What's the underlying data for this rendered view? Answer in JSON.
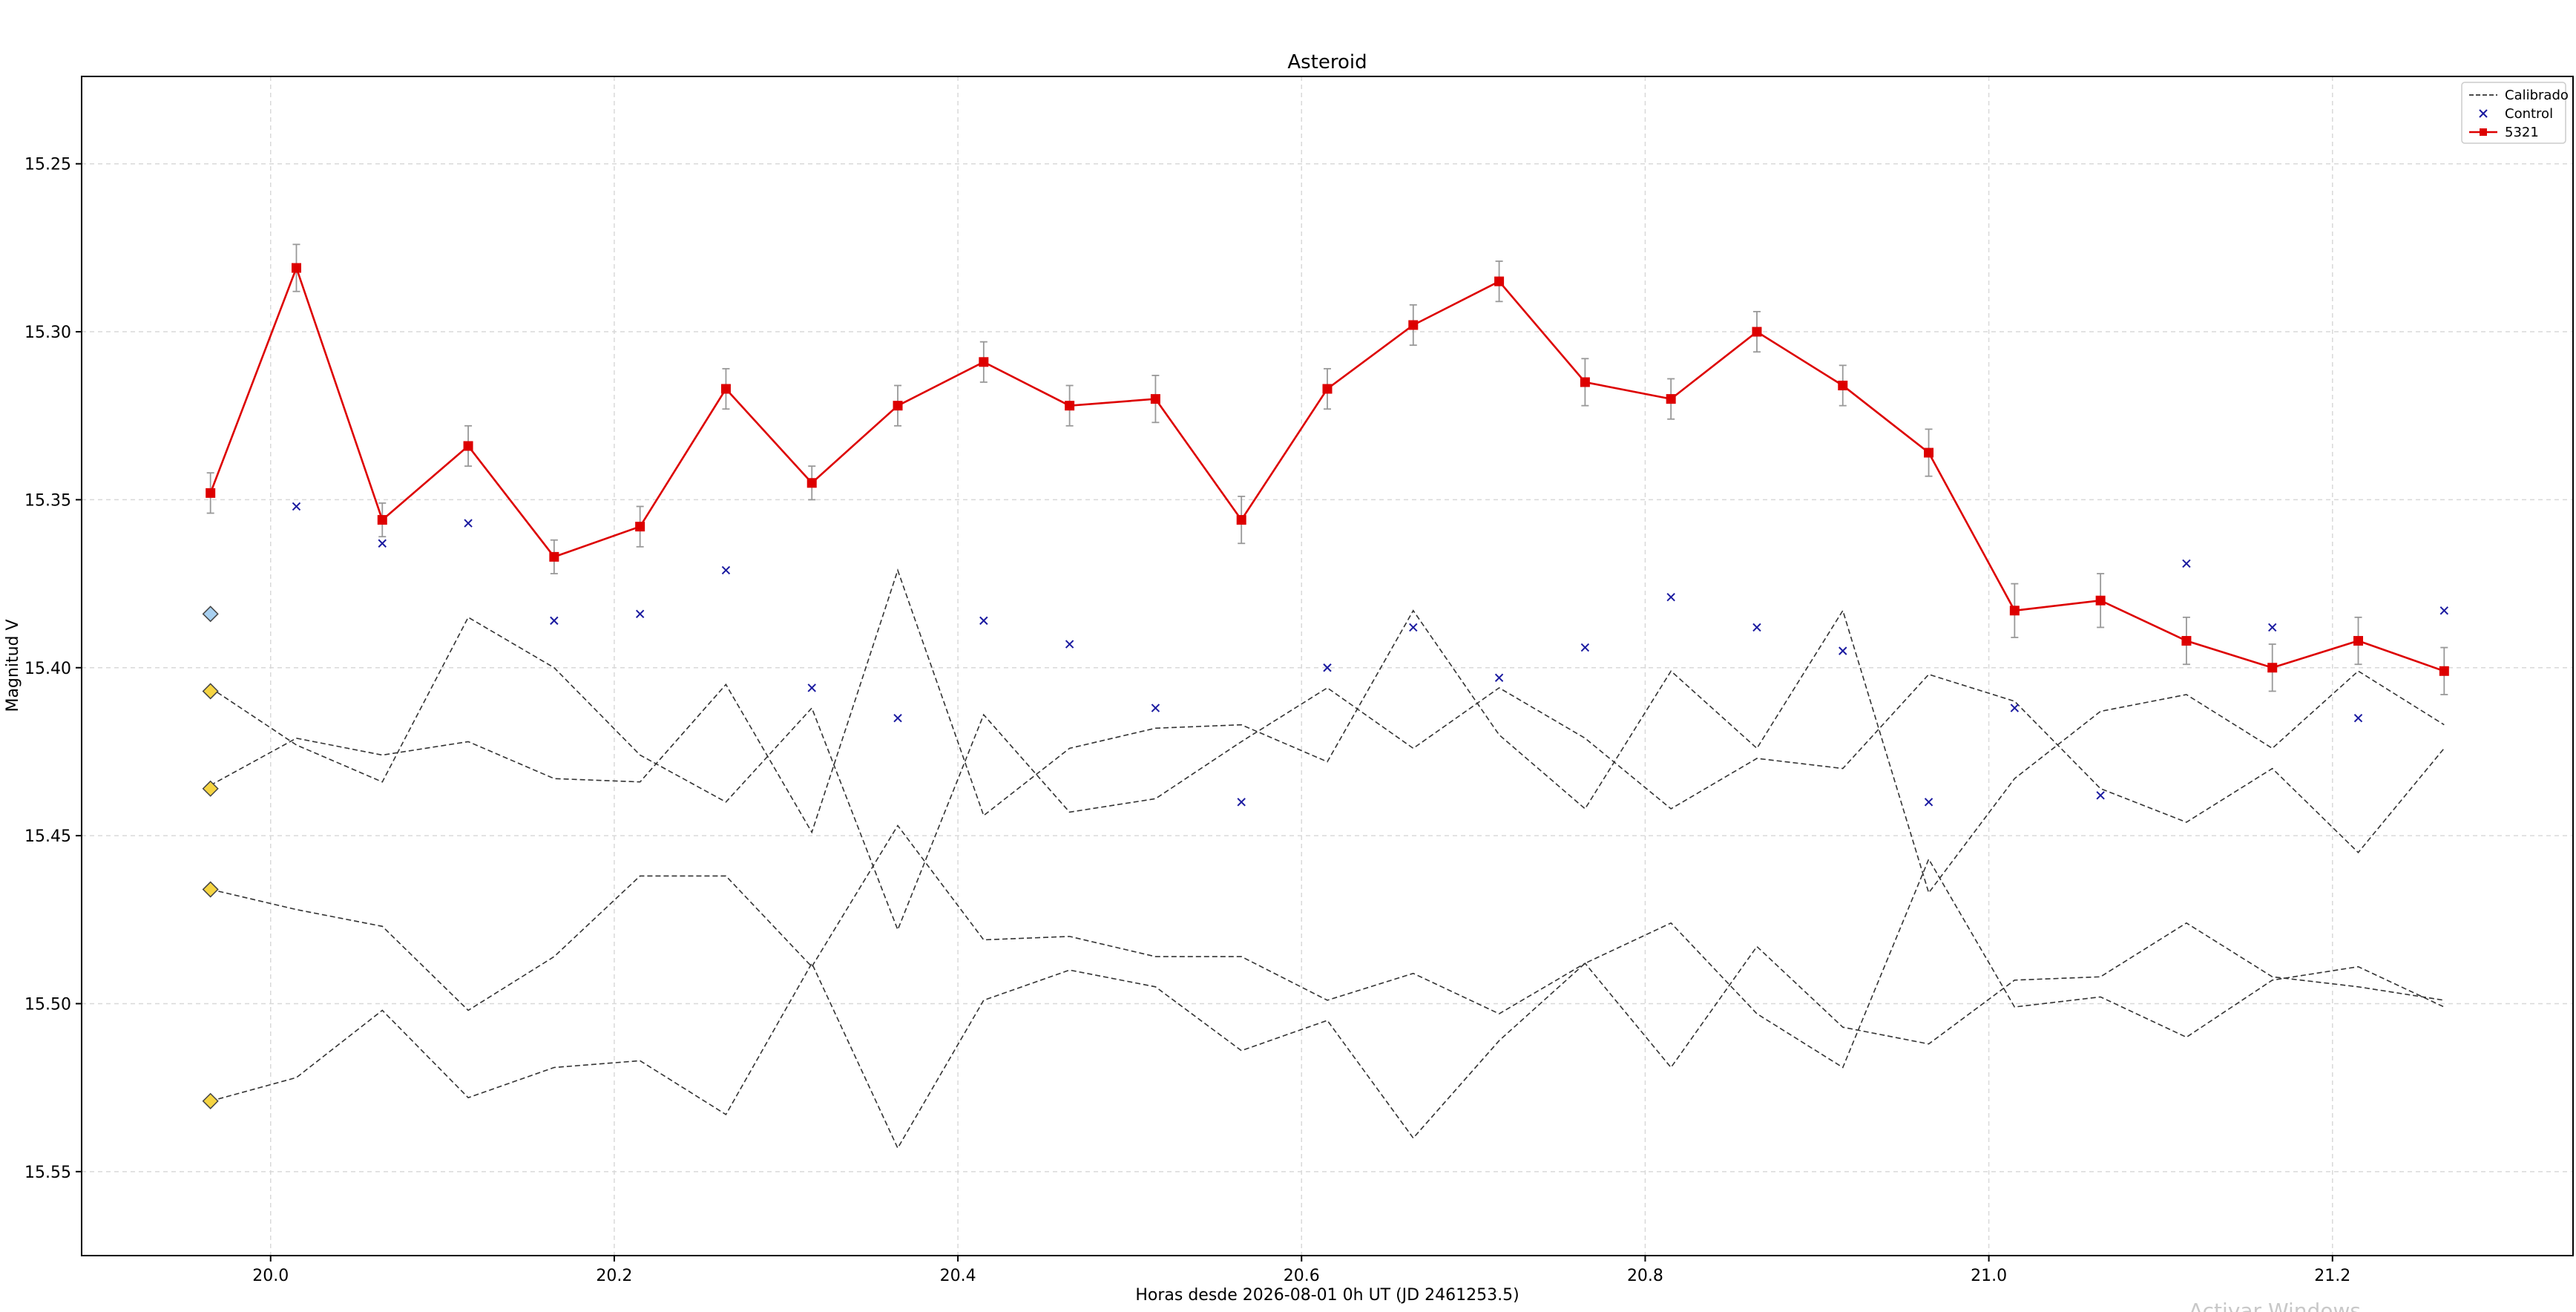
{
  "watermark": "Activar Windows",
  "chart_data": {
    "type": "line",
    "title": "Asteroid",
    "xlabel": "Horas desde 2026-08-01 0h UT (JD 2461253.5)",
    "ylabel": "Magnitud V",
    "xlim": [
      19.89,
      21.34
    ],
    "ylim": [
      15.575,
      15.224
    ],
    "y_inverted": true,
    "grid": true,
    "legend_position": "top-right",
    "x_ticks": [
      "20.0",
      "20.2",
      "20.4",
      "20.6",
      "20.8",
      "21.0",
      "21.2"
    ],
    "y_ticks": [
      "15.25",
      "15.30",
      "15.35",
      "15.40",
      "15.45",
      "15.50",
      "15.55"
    ],
    "x": [
      19.965,
      20.015,
      20.065,
      20.115,
      20.165,
      20.215,
      20.265,
      20.315,
      20.365,
      20.415,
      20.465,
      20.515,
      20.565,
      20.615,
      20.665,
      20.715,
      20.765,
      20.815,
      20.865,
      20.915,
      20.965,
      21.015,
      21.065,
      21.115,
      21.165,
      21.215,
      21.265
    ],
    "series": [
      {
        "name": "5321",
        "kind": "line-marker",
        "color": "#dd0000",
        "values": [
          15.348,
          15.281,
          15.356,
          15.334,
          15.367,
          15.358,
          15.317,
          15.345,
          15.322,
          15.309,
          15.322,
          15.32,
          15.356,
          15.317,
          15.298,
          15.285,
          15.315,
          15.32,
          15.3,
          15.316,
          15.336,
          15.383,
          15.38,
          15.392,
          15.4,
          15.392,
          15.401
        ],
        "errors": [
          0.006,
          0.007,
          0.005,
          0.006,
          0.005,
          0.006,
          0.006,
          0.005,
          0.006,
          0.006,
          0.006,
          0.007,
          0.007,
          0.006,
          0.006,
          0.006,
          0.007,
          0.006,
          0.006,
          0.006,
          0.007,
          0.008,
          0.008,
          0.007,
          0.007,
          0.007,
          0.007
        ]
      },
      {
        "name": "Control",
        "kind": "scatter-x",
        "color": "#1a1aa0",
        "values": [
          null,
          15.352,
          15.363,
          15.357,
          15.386,
          15.384,
          15.371,
          15.406,
          15.415,
          15.386,
          15.393,
          15.412,
          15.44,
          15.4,
          15.388,
          15.403,
          15.394,
          15.379,
          15.388,
          15.395,
          15.44,
          15.412,
          15.438,
          15.369,
          15.388,
          15.415,
          15.383
        ]
      },
      {
        "name": "Calibrado",
        "kind": "dashed",
        "color": "#333333",
        "values": [
          15.406,
          15.423,
          15.434,
          15.385,
          15.4,
          15.426,
          15.44,
          15.412,
          15.478,
          15.414,
          15.443,
          15.439,
          15.422,
          15.406,
          15.424,
          15.406,
          15.421,
          15.442,
          15.427,
          15.43,
          15.402,
          15.41,
          15.436,
          15.446,
          15.43,
          15.455,
          15.424
        ]
      },
      {
        "name": "",
        "kind": "dashed",
        "color": "#333333",
        "values": [
          15.435,
          15.421,
          15.426,
          15.422,
          15.433,
          15.434,
          15.405,
          15.449,
          15.371,
          15.444,
          15.424,
          15.418,
          15.417,
          15.428,
          15.383,
          15.42,
          15.442,
          15.401,
          15.424,
          15.383,
          15.467,
          15.433,
          15.413,
          15.408,
          15.424,
          15.401,
          15.417
        ]
      },
      {
        "name": "",
        "kind": "dashed",
        "color": "#333333",
        "values": [
          15.466,
          15.472,
          15.477,
          15.502,
          15.486,
          15.462,
          15.462,
          15.489,
          15.447,
          15.481,
          15.48,
          15.486,
          15.486,
          15.499,
          15.491,
          15.503,
          15.488,
          15.519,
          15.483,
          15.507,
          15.512,
          15.493,
          15.492,
          15.476,
          15.492,
          15.495,
          15.499
        ]
      },
      {
        "name": "",
        "kind": "dashed",
        "color": "#333333",
        "values": [
          15.529,
          15.522,
          15.502,
          15.528,
          15.519,
          15.517,
          15.533,
          15.488,
          15.543,
          15.499,
          15.49,
          15.495,
          15.514,
          15.505,
          15.54,
          15.511,
          15.488,
          15.476,
          15.503,
          15.519,
          15.457,
          15.501,
          15.498,
          15.51,
          15.493,
          15.489,
          15.501
        ]
      }
    ],
    "reference_markers": [
      {
        "y": 15.384,
        "color": "#a8d0f0"
      },
      {
        "y": 15.407,
        "color": "#f5d442"
      },
      {
        "y": 15.436,
        "color": "#f5d442"
      },
      {
        "y": 15.466,
        "color": "#f5d442"
      },
      {
        "y": 15.529,
        "color": "#f5d442"
      }
    ],
    "legend": [
      {
        "label": "Calibrado",
        "kind": "dashed",
        "color": "#333333"
      },
      {
        "label": "Control",
        "kind": "scatter-x",
        "color": "#1a1aa0"
      },
      {
        "label": "5321",
        "kind": "line-marker",
        "color": "#dd0000"
      }
    ]
  }
}
